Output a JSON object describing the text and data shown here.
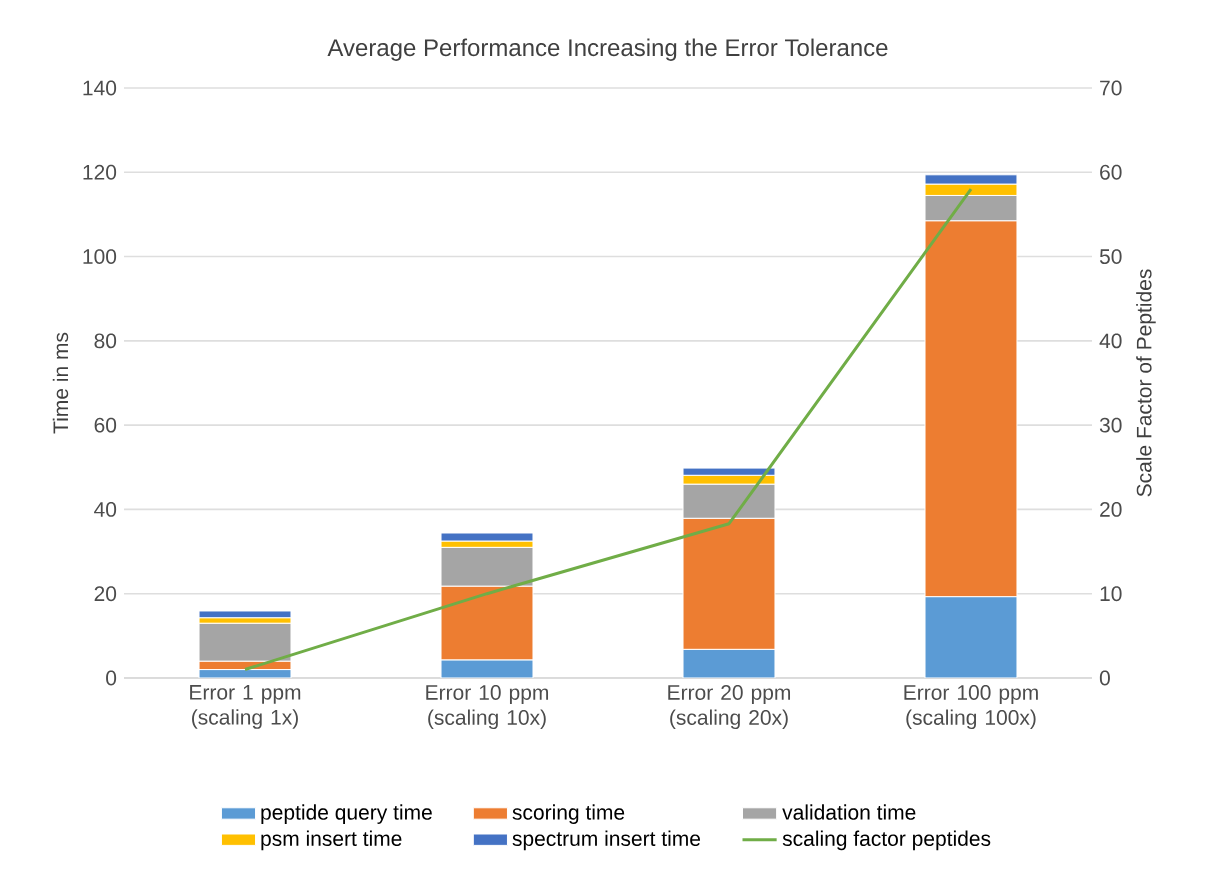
{
  "chart_data": {
    "type": "bar",
    "stacked": true,
    "title": "Average Performance Increasing the Error Tolerance",
    "ylabel": "Time in ms",
    "y2label": "Scale Factor of Peptides",
    "categories": [
      "Error 1 ppm (scaling 1x)",
      "Error 10 ppm (scaling 10x)",
      "Error 20 ppm (scaling 20x)",
      "Error 100 ppm (scaling 100x)"
    ],
    "series": [
      {
        "name": "peptide query time",
        "color": "#5b9bd5",
        "values": [
          2,
          4.3,
          6.8,
          19.3
        ]
      },
      {
        "name": "scoring time",
        "color": "#ed7d31",
        "values": [
          2,
          17.5,
          31.1,
          89.2
        ]
      },
      {
        "name": "validation time",
        "color": "#a5a5a5",
        "values": [
          9,
          9.2,
          8.1,
          6
        ]
      },
      {
        "name": "psm insert time",
        "color": "#ffc000",
        "values": [
          1.3,
          1.5,
          2.1,
          2.7
        ]
      },
      {
        "name": "spectrum insert time",
        "color": "#4472c4",
        "values": [
          1.6,
          1.9,
          1.7,
          2.2
        ]
      },
      {
        "name": "scaling factor peptides",
        "color": "#70ad47",
        "type": "line",
        "axis": "y2",
        "values": [
          1,
          10,
          18.3,
          58
        ]
      }
    ],
    "ylim": [
      0,
      140
    ],
    "yticks": [
      0,
      20,
      40,
      60,
      80,
      100,
      120,
      140
    ],
    "y2lim": [
      0,
      70
    ],
    "y2ticks": [
      0,
      10,
      20,
      30,
      40,
      50,
      60,
      70
    ],
    "grid": "y",
    "legend": "bottom"
  }
}
